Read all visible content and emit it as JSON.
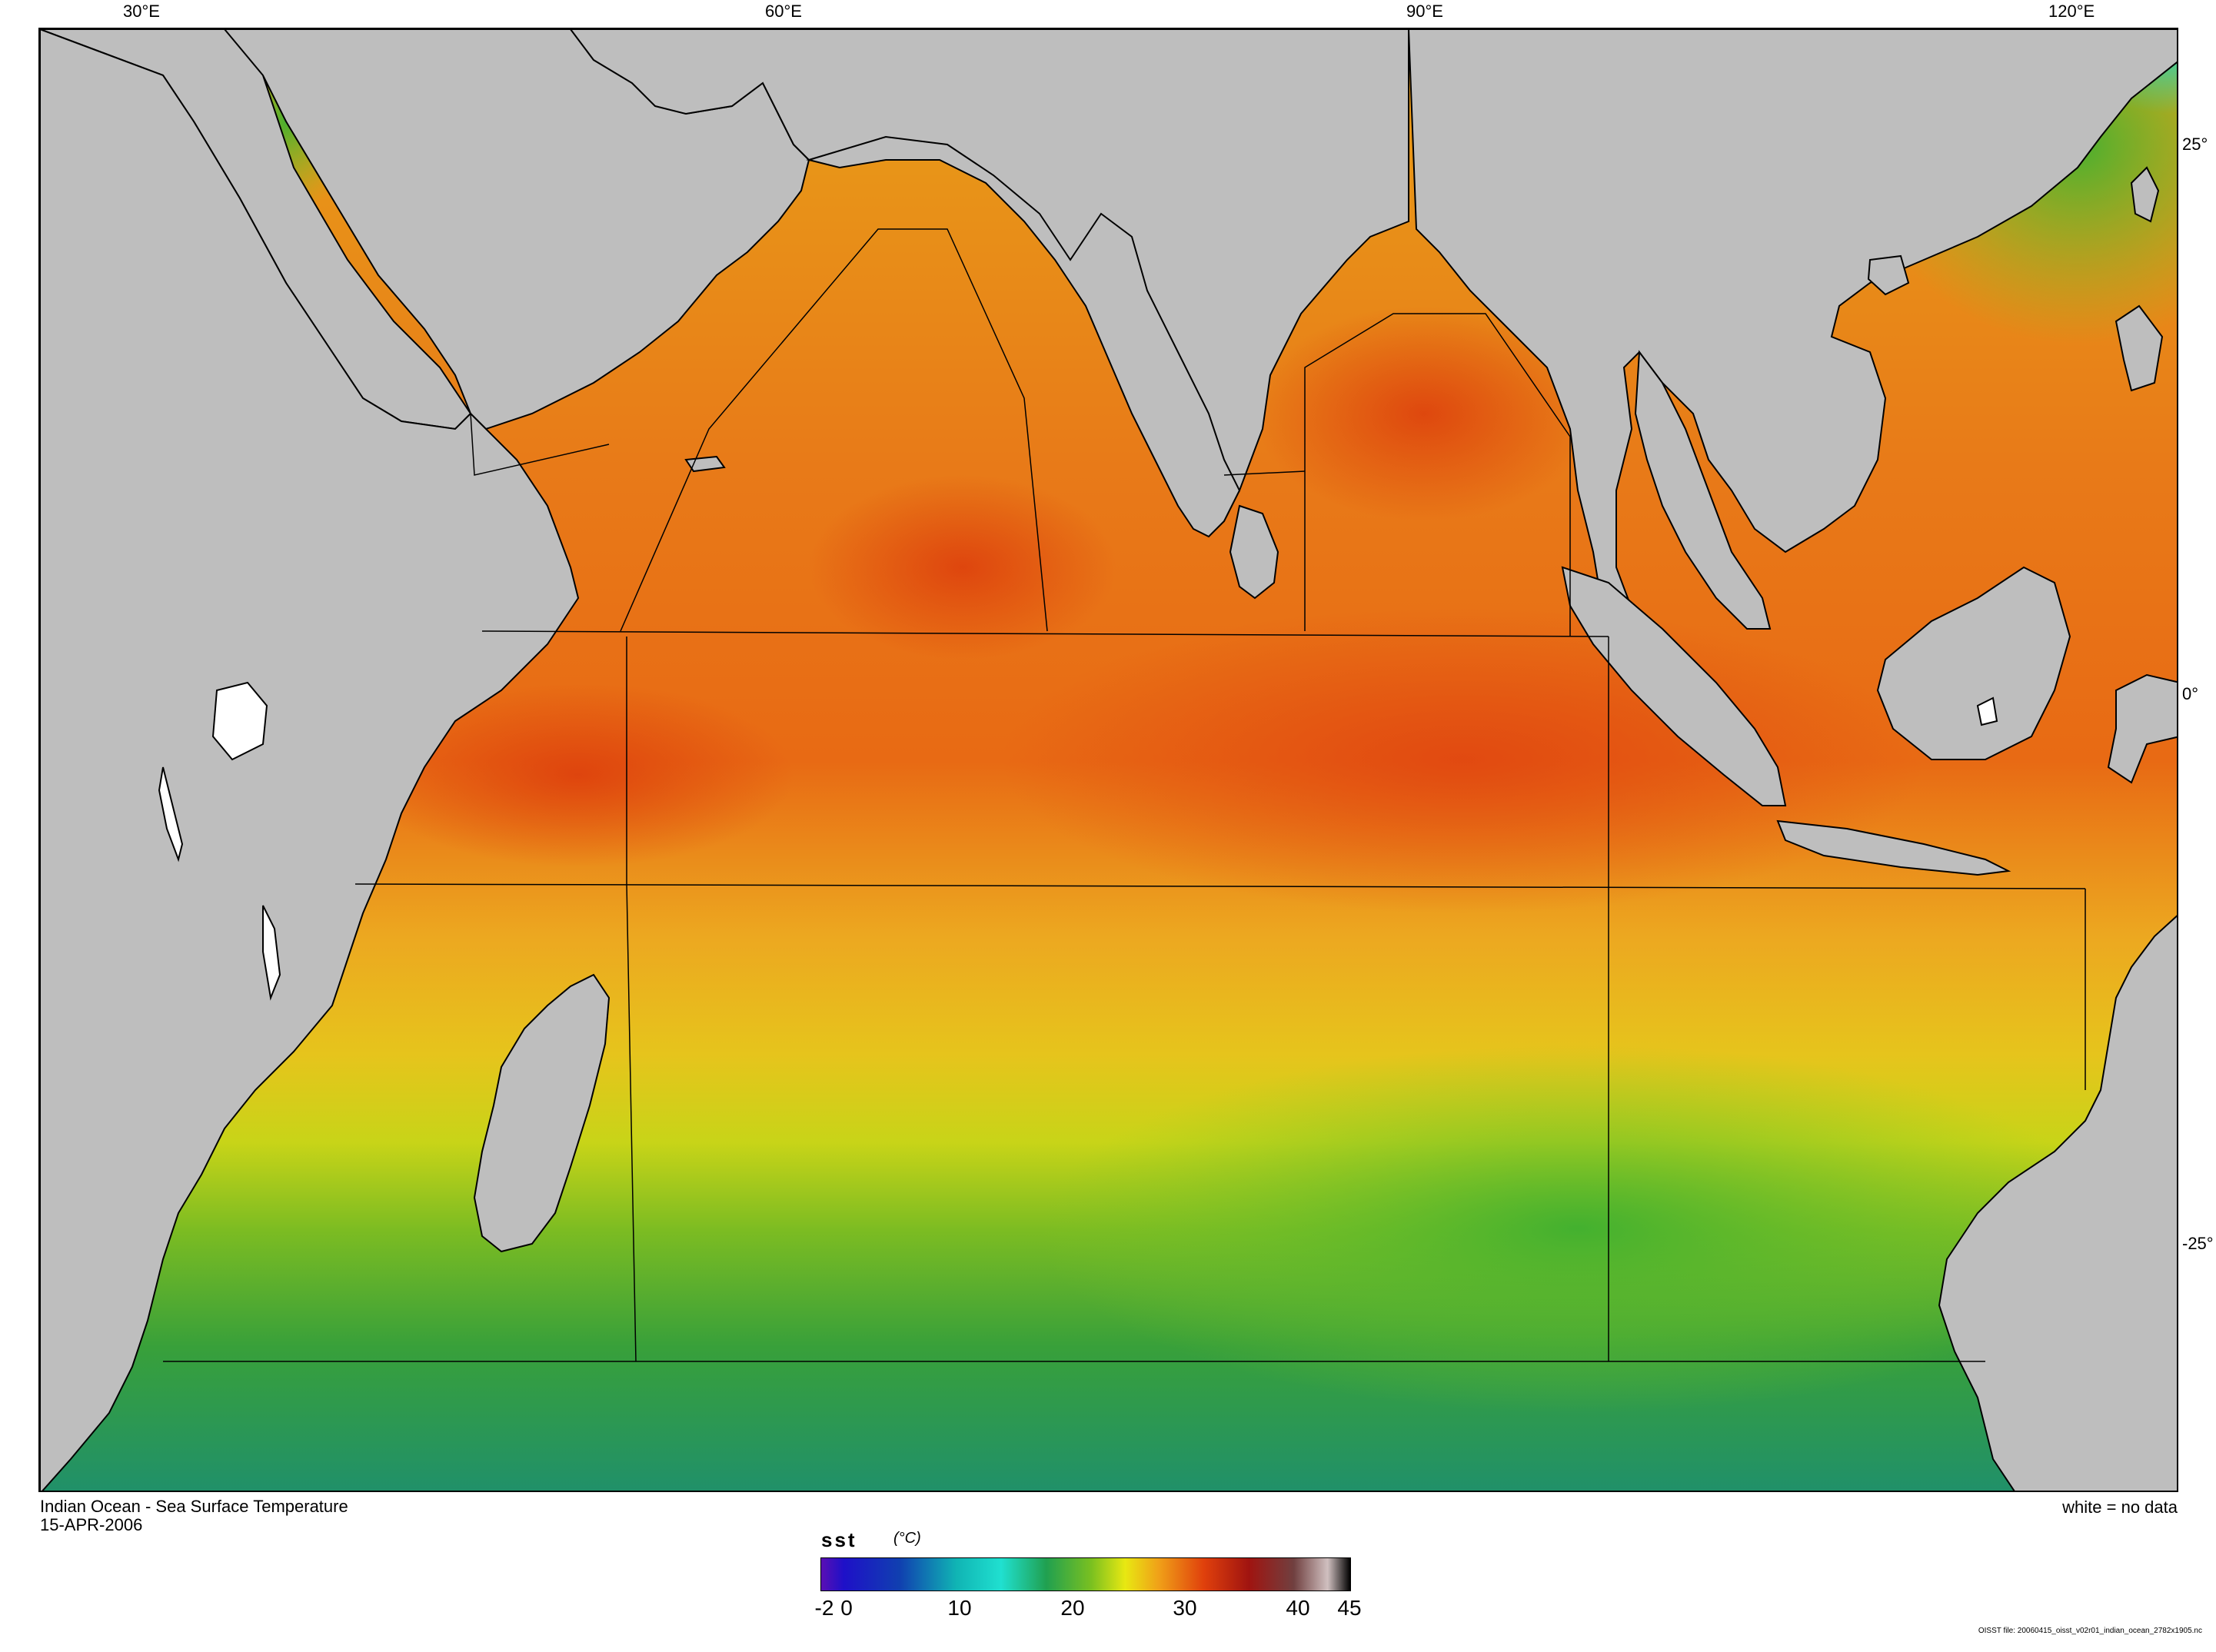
{
  "axes": {
    "top_labels": [
      "30°E",
      "60°E",
      "90°E",
      "120°E"
    ],
    "right_labels": [
      "25°",
      "0°",
      "-25°"
    ]
  },
  "map": {
    "title": "Indian Ocean - Sea Surface Temperature",
    "date": "15-APR-2006",
    "no_data_note": "white = no data",
    "land_color": "#bebebe",
    "coastline_color": "#000000",
    "ocean_regions_note": "warm tropics ~28-31°C (orange/red), subtropical ~24-26°C (yellow), southern ~18-22°C (green)"
  },
  "colorbar": {
    "variable": "sst",
    "unit": "(°C)",
    "ticks": [
      "-2",
      "0",
      "10",
      "20",
      "30",
      "40",
      "45"
    ],
    "range": [
      -2,
      45
    ],
    "stops": [
      {
        "value": -2,
        "color": "#5a0fb4"
      },
      {
        "value": 0,
        "color": "#1e10c8"
      },
      {
        "value": 5,
        "color": "#1040b0"
      },
      {
        "value": 10,
        "color": "#10b4b4"
      },
      {
        "value": 14,
        "color": "#20e0d0"
      },
      {
        "value": 18,
        "color": "#20a050"
      },
      {
        "value": 22,
        "color": "#7ac020"
      },
      {
        "value": 25,
        "color": "#e8e812"
      },
      {
        "value": 28,
        "color": "#f0a018"
      },
      {
        "value": 32,
        "color": "#e0400c"
      },
      {
        "value": 36,
        "color": "#a01410"
      },
      {
        "value": 40,
        "color": "#704040"
      },
      {
        "value": 43,
        "color": "#d0c0c0"
      },
      {
        "value": 45,
        "color": "#000000"
      }
    ]
  },
  "source_file": "OISST file: 20060415_oisst_v02r01_indian_ocean_2782x1905.nc"
}
